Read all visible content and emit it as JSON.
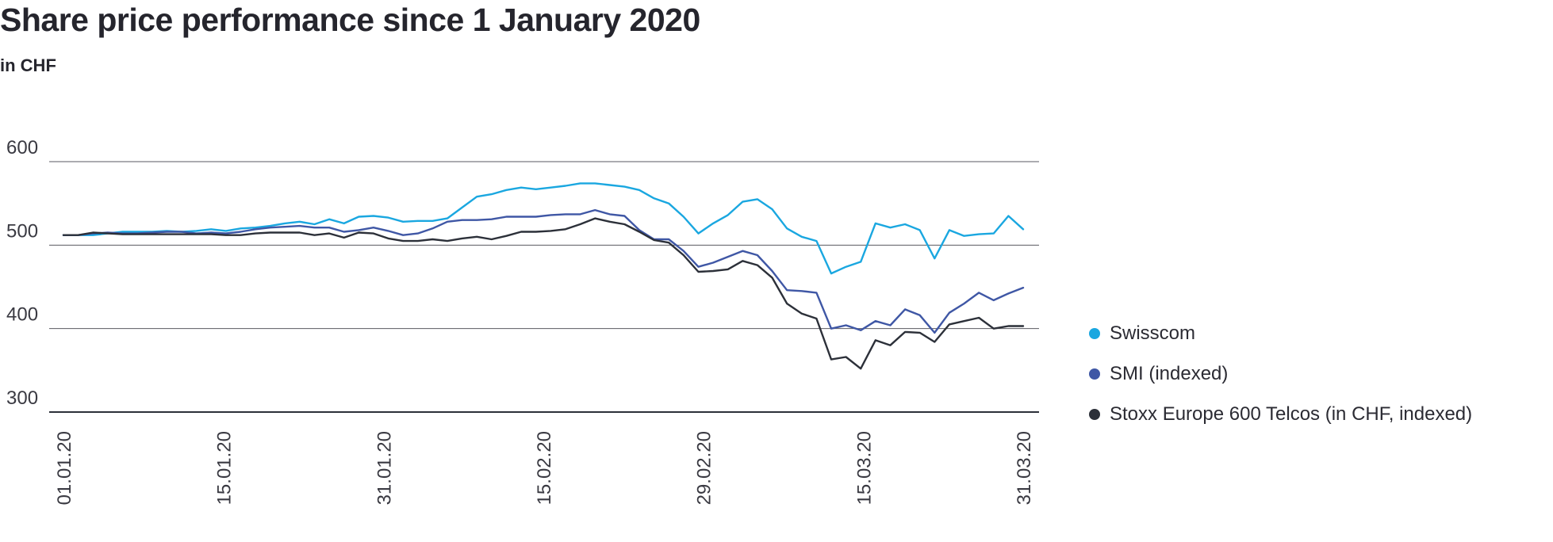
{
  "title": "Share price performance since 1 January 2020",
  "subtitle": "in CHF",
  "chart_data": {
    "type": "line",
    "title": "Share price performance since 1 January 2020",
    "subtitle": "in CHF",
    "xlabel": "",
    "ylabel": "",
    "ylim": [
      300,
      600
    ],
    "yticks": [
      300,
      400,
      500,
      600
    ],
    "xtick_labels": [
      "01.01.20",
      "15.01.20",
      "31.01.20",
      "15.02.20",
      "29.02.20",
      "15.03.20",
      "31.03.20"
    ],
    "grid": "horizontal",
    "legend_position": "right",
    "series": [
      {
        "name": "Swisscom",
        "color": "#1aa7e0",
        "values": [
          [
            0,
            512
          ],
          [
            1,
            512
          ],
          [
            2,
            512
          ],
          [
            3,
            514
          ],
          [
            4,
            516
          ],
          [
            5,
            516
          ],
          [
            6,
            516
          ],
          [
            7,
            517
          ],
          [
            8,
            516
          ],
          [
            9,
            517
          ],
          [
            10,
            519
          ],
          [
            11,
            517
          ],
          [
            12,
            520
          ],
          [
            13,
            521
          ],
          [
            14,
            523
          ],
          [
            15,
            526
          ],
          [
            16,
            528
          ],
          [
            17,
            525
          ],
          [
            18,
            531
          ],
          [
            19,
            526
          ],
          [
            20,
            534
          ],
          [
            21,
            535
          ],
          [
            22,
            533
          ],
          [
            23,
            528
          ],
          [
            24,
            529
          ],
          [
            25,
            529
          ],
          [
            26,
            532
          ],
          [
            27,
            545
          ],
          [
            28,
            558
          ],
          [
            29,
            561
          ],
          [
            30,
            566
          ],
          [
            31,
            569
          ],
          [
            32,
            567
          ],
          [
            33,
            569
          ],
          [
            34,
            571
          ],
          [
            35,
            574
          ],
          [
            36,
            574
          ],
          [
            37,
            572
          ],
          [
            38,
            570
          ],
          [
            39,
            566
          ],
          [
            40,
            556
          ],
          [
            41,
            550
          ],
          [
            42,
            534
          ],
          [
            43,
            514
          ],
          [
            44,
            526
          ],
          [
            45,
            536
          ],
          [
            46,
            552
          ],
          [
            47,
            555
          ],
          [
            48,
            543
          ],
          [
            49,
            520
          ],
          [
            50,
            510
          ],
          [
            51,
            505
          ],
          [
            52,
            466
          ],
          [
            53,
            474
          ],
          [
            54,
            480
          ],
          [
            55,
            526
          ],
          [
            56,
            521
          ],
          [
            57,
            525
          ],
          [
            58,
            518
          ],
          [
            59,
            484
          ],
          [
            60,
            518
          ],
          [
            61,
            511
          ],
          [
            62,
            513
          ],
          [
            63,
            514
          ],
          [
            64,
            535
          ],
          [
            65,
            519
          ]
        ]
      },
      {
        "name": "SMI (indexed)",
        "color": "#3f57a5",
        "values": [
          [
            0,
            512
          ],
          [
            1,
            512
          ],
          [
            2,
            514
          ],
          [
            3,
            515
          ],
          [
            4,
            514
          ],
          [
            5,
            514
          ],
          [
            6,
            515
          ],
          [
            7,
            516
          ],
          [
            8,
            516
          ],
          [
            9,
            514
          ],
          [
            10,
            515
          ],
          [
            11,
            514
          ],
          [
            12,
            516
          ],
          [
            13,
            519
          ],
          [
            14,
            521
          ],
          [
            15,
            522
          ],
          [
            16,
            523
          ],
          [
            17,
            521
          ],
          [
            18,
            521
          ],
          [
            19,
            516
          ],
          [
            20,
            518
          ],
          [
            21,
            521
          ],
          [
            22,
            517
          ],
          [
            23,
            512
          ],
          [
            24,
            514
          ],
          [
            25,
            520
          ],
          [
            26,
            528
          ],
          [
            27,
            530
          ],
          [
            28,
            530
          ],
          [
            29,
            531
          ],
          [
            30,
            534
          ],
          [
            31,
            534
          ],
          [
            32,
            534
          ],
          [
            33,
            536
          ],
          [
            34,
            537
          ],
          [
            35,
            537
          ],
          [
            36,
            542
          ],
          [
            37,
            537
          ],
          [
            38,
            535
          ],
          [
            39,
            518
          ],
          [
            40,
            507
          ],
          [
            41,
            507
          ],
          [
            42,
            493
          ],
          [
            43,
            474
          ],
          [
            44,
            479
          ],
          [
            45,
            486
          ],
          [
            46,
            493
          ],
          [
            47,
            488
          ],
          [
            48,
            469
          ],
          [
            49,
            446
          ],
          [
            50,
            445
          ],
          [
            51,
            443
          ],
          [
            52,
            400
          ],
          [
            53,
            404
          ],
          [
            54,
            398
          ],
          [
            55,
            409
          ],
          [
            56,
            404
          ],
          [
            57,
            423
          ],
          [
            58,
            416
          ],
          [
            59,
            395
          ],
          [
            60,
            419
          ],
          [
            61,
            430
          ],
          [
            62,
            443
          ],
          [
            63,
            434
          ],
          [
            64,
            442
          ],
          [
            65,
            449
          ]
        ]
      },
      {
        "name": "Stoxx Europe 600 Telcos (in CHF, indexed)",
        "color": "#2c3039",
        "values": [
          [
            0,
            512
          ],
          [
            1,
            512
          ],
          [
            2,
            515
          ],
          [
            3,
            514
          ],
          [
            4,
            513
          ],
          [
            5,
            513
          ],
          [
            6,
            513
          ],
          [
            7,
            513
          ],
          [
            8,
            513
          ],
          [
            9,
            513
          ],
          [
            10,
            513
          ],
          [
            11,
            512
          ],
          [
            12,
            512
          ],
          [
            13,
            514
          ],
          [
            14,
            515
          ],
          [
            15,
            515
          ],
          [
            16,
            515
          ],
          [
            17,
            512
          ],
          [
            18,
            514
          ],
          [
            19,
            509
          ],
          [
            20,
            515
          ],
          [
            21,
            514
          ],
          [
            22,
            508
          ],
          [
            23,
            505
          ],
          [
            24,
            505
          ],
          [
            25,
            507
          ],
          [
            26,
            505
          ],
          [
            27,
            508
          ],
          [
            28,
            510
          ],
          [
            29,
            507
          ],
          [
            30,
            511
          ],
          [
            31,
            516
          ],
          [
            32,
            516
          ],
          [
            33,
            517
          ],
          [
            34,
            519
          ],
          [
            35,
            525
          ],
          [
            36,
            532
          ],
          [
            37,
            528
          ],
          [
            38,
            525
          ],
          [
            39,
            516
          ],
          [
            40,
            506
          ],
          [
            41,
            503
          ],
          [
            42,
            488
          ],
          [
            43,
            468
          ],
          [
            44,
            469
          ],
          [
            45,
            471
          ],
          [
            46,
            481
          ],
          [
            47,
            476
          ],
          [
            48,
            461
          ],
          [
            49,
            430
          ],
          [
            50,
            418
          ],
          [
            51,
            412
          ],
          [
            52,
            363
          ],
          [
            53,
            366
          ],
          [
            54,
            352
          ],
          [
            55,
            386
          ],
          [
            56,
            380
          ],
          [
            57,
            396
          ],
          [
            58,
            395
          ],
          [
            59,
            384
          ],
          [
            60,
            405
          ],
          [
            61,
            409
          ],
          [
            62,
            413
          ],
          [
            63,
            400
          ],
          [
            64,
            403
          ],
          [
            65,
            403
          ]
        ]
      }
    ]
  }
}
